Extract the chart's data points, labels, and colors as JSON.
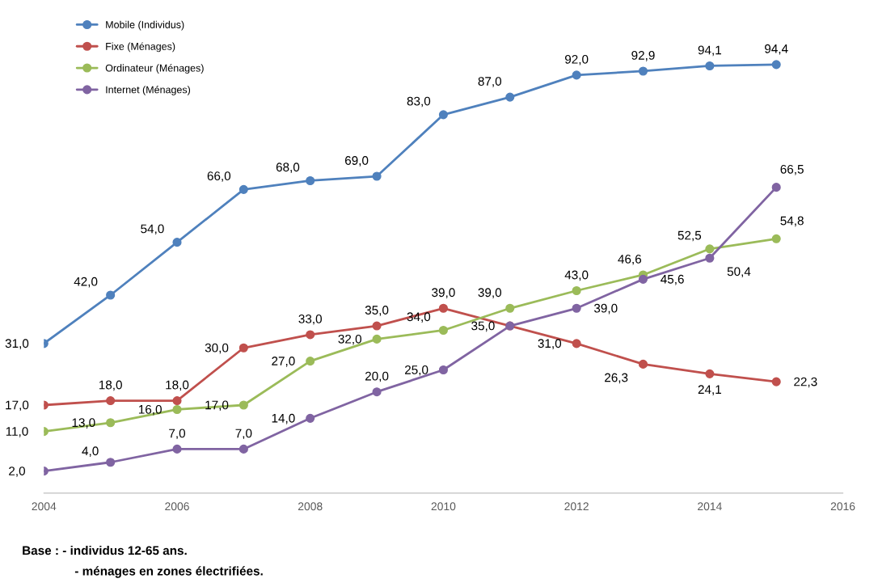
{
  "chart_data": {
    "type": "line",
    "x": [
      2004,
      2005,
      2006,
      2007,
      2008,
      2009,
      2010,
      2011,
      2012,
      2013,
      2014,
      2015
    ],
    "xlim": [
      2004,
      2016
    ],
    "xticks": [
      2004,
      2006,
      2008,
      2010,
      2012,
      2014,
      2016
    ],
    "tick_labels": "x",
    "marker": "circle",
    "line_style": "solid",
    "legend": "top left",
    "grid": false,
    "series": [
      {
        "name": "Mobile (Individus)",
        "color": "#4f81bd",
        "values": [
          31,
          42,
          54,
          66,
          68,
          69,
          83,
          87,
          92,
          92.9,
          94.1,
          94.4
        ],
        "value_labels": [
          "31,0",
          "42,0",
          "54,0",
          "66,0",
          "68,0",
          "69,0",
          "83,0",
          "87,0",
          "92,0",
          "92,9",
          "94,1",
          "94,4"
        ]
      },
      {
        "name": "Fixe (Ménages)",
        "color": "#c0504d",
        "values": [
          17,
          18,
          18,
          30,
          33,
          35,
          39,
          35,
          31,
          26.3,
          24.1,
          22.3
        ],
        "value_labels": [
          "17,0",
          "18,0",
          "18,0",
          "30,0",
          "33,0",
          "35,0",
          "39,0",
          null,
          "31,0",
          "26,3",
          "24,1",
          "22,3"
        ]
      },
      {
        "name": "Ordinateur (Ménages)",
        "color": "#9bbb59",
        "values": [
          11,
          13,
          16,
          17,
          27,
          32,
          34,
          39,
          43,
          46.6,
          52.5,
          54.8
        ],
        "value_labels": [
          "11,0",
          "13,0",
          "16,0",
          "17,0",
          "27,0",
          "32,0",
          "34,0",
          "39,0",
          "43,0",
          "46,6",
          "52,5",
          "54,8"
        ]
      },
      {
        "name": "Internet (Ménages)",
        "color": "#8064a2",
        "values": [
          2,
          4,
          7,
          7,
          14,
          20,
          25,
          35,
          39,
          45.6,
          50.4,
          66.5
        ],
        "value_labels": [
          "2,0",
          "4,0",
          "7,0",
          "7,0",
          "14,0",
          "20,0",
          "25,0",
          "35,0",
          "39,0",
          "45,6",
          "50,4",
          "66,5"
        ]
      }
    ],
    "annotations": [
      "Base : - individus 12-65 ans.",
      "- ménages en zones électrifiées."
    ]
  }
}
